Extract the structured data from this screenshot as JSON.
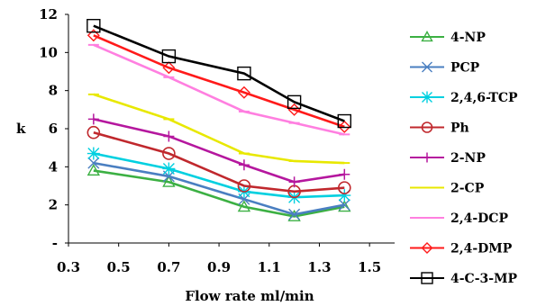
{
  "chart_data": {
    "type": "line",
    "title": "",
    "xlabel": "Flow rate ml/min",
    "ylabel": "k",
    "xlim": [
      0.3,
      1.6
    ],
    "ylim": [
      0,
      12
    ],
    "xticks": [
      "0.3",
      "0.5",
      "0.7",
      "0.9",
      "1.1",
      "1.3",
      "1.5"
    ],
    "yticks": [
      "-",
      "2",
      "4",
      "6",
      "8",
      "10",
      "12"
    ],
    "grid": false,
    "legend_position": "right",
    "x": [
      0.4,
      0.7,
      1.0,
      1.2,
      1.4
    ],
    "series": [
      {
        "name": "4-NP",
        "color": "#3cb043",
        "marker": "triangle",
        "values": [
          3.8,
          3.2,
          1.9,
          1.4,
          1.9
        ]
      },
      {
        "name": "PCP",
        "color": "#4a7fc1",
        "marker": "x",
        "values": [
          4.2,
          3.5,
          2.3,
          1.5,
          2.0
        ]
      },
      {
        "name": "2,4,6-TCP",
        "color": "#00d0e0",
        "marker": "asterisk",
        "values": [
          4.7,
          3.9,
          2.7,
          2.4,
          2.5
        ]
      },
      {
        "name": "Ph",
        "color": "#c0282d",
        "marker": "circle",
        "values": [
          5.8,
          4.7,
          3.0,
          2.7,
          2.9
        ]
      },
      {
        "name": "2-NP",
        "color": "#b5179e",
        "marker": "plus",
        "values": [
          6.5,
          5.6,
          4.1,
          3.2,
          3.6
        ]
      },
      {
        "name": "2-CP",
        "color": "#e8e800",
        "marker": "dash",
        "values": [
          7.8,
          6.5,
          4.7,
          4.3,
          4.2
        ]
      },
      {
        "name": "2,4-DCP",
        "color": "#ff7fe0",
        "marker": "dash",
        "values": [
          10.4,
          8.7,
          6.9,
          6.3,
          5.7
        ]
      },
      {
        "name": "2,4-DMP",
        "color": "#ff1a1a",
        "marker": "diamond",
        "values": [
          10.9,
          9.2,
          7.9,
          7.0,
          6.1
        ]
      },
      {
        "name": "4-C-3-MP",
        "color": "#000000",
        "marker": "square",
        "values": [
          11.4,
          9.8,
          8.9,
          7.4,
          6.4
        ]
      }
    ]
  }
}
